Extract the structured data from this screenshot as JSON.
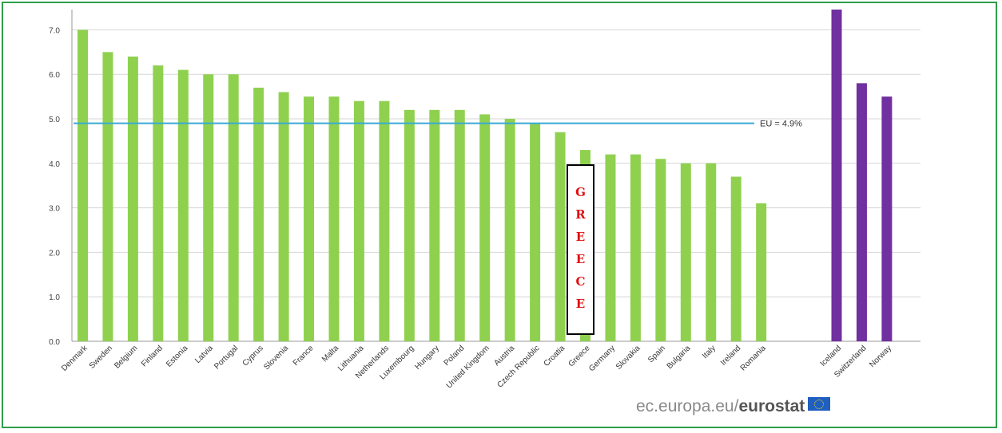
{
  "chart_data": {
    "type": "bar",
    "categories": [
      "Denmark",
      "Sweden",
      "Belgium",
      "Finland",
      "Estonia",
      "Latvia",
      "Portugal",
      "Cyprus",
      "Slovenia",
      "France",
      "Malta",
      "Lithuania",
      "Netherlands",
      "Luxembourg",
      "Hungary",
      "Poland",
      "United Kingdom",
      "Austria",
      "Czech Republic",
      "Croatia",
      "Greece",
      "Germany",
      "Slovakia",
      "Spain",
      "Bulgaria",
      "Italy",
      "Ireland",
      "Romania",
      "",
      "",
      "Iceland",
      "Switzerland",
      "Norway"
    ],
    "values": [
      7.0,
      6.5,
      6.4,
      6.2,
      6.1,
      6.0,
      6.0,
      5.7,
      5.6,
      5.5,
      5.5,
      5.4,
      5.4,
      5.2,
      5.2,
      5.2,
      5.1,
      5.0,
      4.9,
      4.7,
      4.3,
      4.2,
      4.2,
      4.1,
      4.0,
      4.0,
      3.7,
      3.1,
      null,
      null,
      7.6,
      5.8,
      5.5
    ],
    "groups": [
      "eu",
      "eu",
      "eu",
      "eu",
      "eu",
      "eu",
      "eu",
      "eu",
      "eu",
      "eu",
      "eu",
      "eu",
      "eu",
      "eu",
      "eu",
      "eu",
      "eu",
      "eu",
      "eu",
      "eu",
      "eu",
      "eu",
      "eu",
      "eu",
      "eu",
      "eu",
      "eu",
      "eu",
      "gap",
      "gap",
      "efta",
      "efta",
      "efta"
    ],
    "ylim": [
      0,
      7.5
    ],
    "yticks": [
      "0.0",
      "1.0",
      "2.0",
      "3.0",
      "4.0",
      "5.0",
      "6.0",
      "7.0"
    ],
    "grid": true,
    "colors": {
      "eu": "#8fd14f",
      "efta": "#7030a0",
      "reference_line": "#39a9d6"
    },
    "reference_line": {
      "value": 4.9,
      "label": "EU = 4.9%"
    },
    "title": "",
    "xlabel": "",
    "ylabel": ""
  },
  "annotation": {
    "letters": [
      "G",
      "R",
      "E",
      "E",
      "C",
      "E"
    ],
    "color": "#e01010"
  },
  "credit": {
    "prefix": "ec.europa.eu/",
    "brand": "eurostat",
    "flag_icon": "eu-flag-icon"
  }
}
